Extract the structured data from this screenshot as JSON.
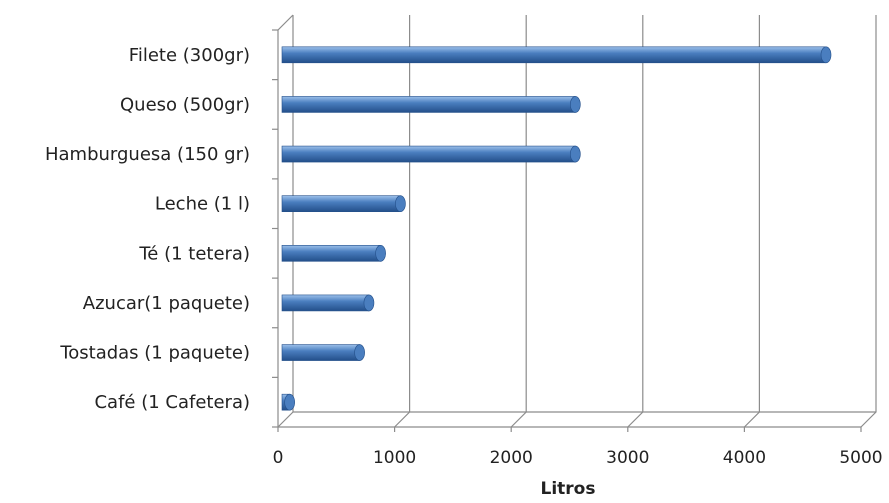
{
  "chart_data": {
    "type": "bar",
    "orientation": "horizontal",
    "style": "3d-cylinder",
    "categories": [
      "Filete (300gr)",
      "Queso (500gr)",
      "Hamburguesa (150 gr)",
      "Leche (1 l)",
      "Té (1 tetera)",
      "Azucar(1 paquete)",
      "Tostadas (1 paquete)",
      "Café (1 Cafetera)"
    ],
    "values": [
      4700,
      2550,
      2550,
      1050,
      880,
      780,
      700,
      100
    ],
    "title": "",
    "xlabel": "Litros",
    "ylabel": "",
    "xlim": [
      0,
      5000
    ],
    "xticks": [
      "0",
      "1000",
      "2000",
      "3000",
      "4000",
      "5000"
    ],
    "grid": true,
    "legend": "none",
    "colors": {
      "bar": "#4a7ebf",
      "bar_light": "#9cc0ea",
      "bar_dark": "#234f8a",
      "grid": "#8c8c8c"
    }
  }
}
